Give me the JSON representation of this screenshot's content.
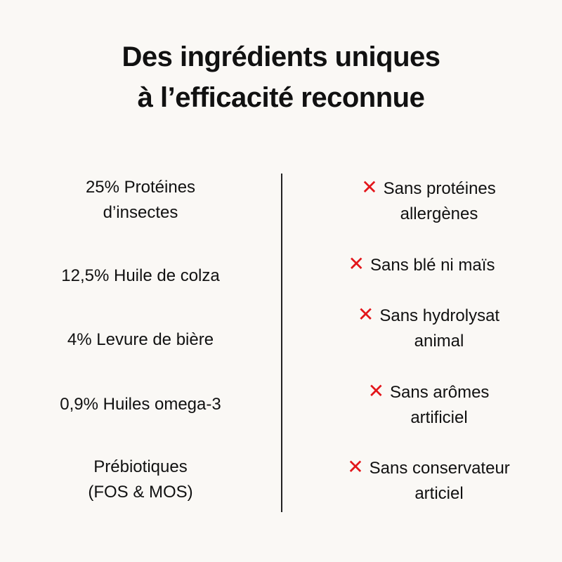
{
  "title": {
    "line1": "Des ingrédients uniques",
    "line2": "à l’efficacité reconnue"
  },
  "ingredients": [
    {
      "lines": [
        "25% Protéines",
        "d’insectes"
      ]
    },
    {
      "lines": [
        "12,5% Huile de colza"
      ]
    },
    {
      "lines": [
        "4% Levure de bière"
      ]
    },
    {
      "lines": [
        "0,9% Huiles omega-3"
      ]
    },
    {
      "lines": [
        "Prébiotiques",
        "(FOS & MOS)"
      ]
    }
  ],
  "exclusions": [
    {
      "icon": "✕",
      "lines": [
        "Sans protéines",
        "allergènes"
      ]
    },
    {
      "icon": "✕",
      "lines": [
        "Sans blé ni maïs"
      ]
    },
    {
      "icon": "✕",
      "lines": [
        "Sans hydrolysat",
        "animal"
      ]
    },
    {
      "icon": "✕",
      "lines": [
        "Sans arômes",
        "artificiel"
      ]
    },
    {
      "icon": "✕",
      "lines": [
        "Sans conservateur",
        "articiel"
      ]
    }
  ],
  "colors": {
    "accent": "#e3151a",
    "background": "#faf8f5"
  }
}
